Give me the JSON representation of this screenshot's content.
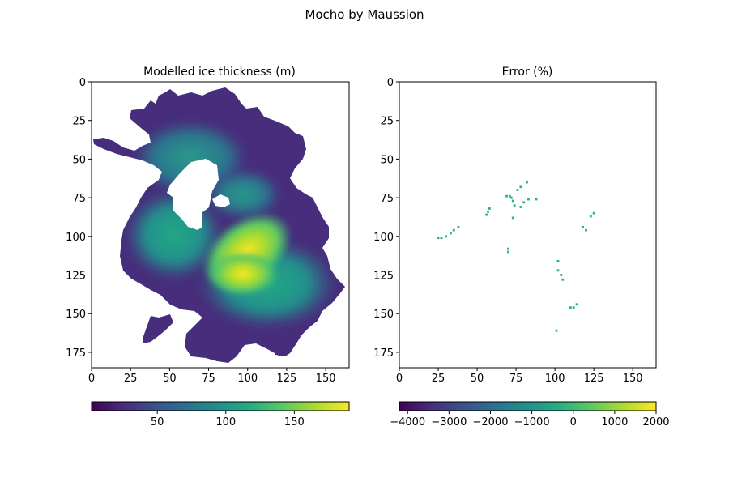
{
  "figure": {
    "suptitle": "Mocho by Maussion"
  },
  "chart_data": [
    {
      "type": "heatmap",
      "title": "Modelled ice thickness (m)",
      "xlabel": "",
      "ylabel": "",
      "xlim": [
        0,
        165
      ],
      "ylim": [
        185,
        0
      ],
      "x_ticks": [
        0,
        25,
        50,
        75,
        100,
        125,
        150
      ],
      "y_ticks": [
        0,
        25,
        50,
        75,
        100,
        125,
        150,
        175
      ],
      "colormap": "viridis",
      "colorbar": {
        "orientation": "horizontal",
        "range": [
          2,
          190
        ],
        "ticks": [
          50,
          100,
          150
        ]
      },
      "description_values": {
        "max_thickness_approx": 190,
        "max_location_approx": [
          105,
          125
        ]
      }
    },
    {
      "type": "heatmap",
      "title": "Error (%)",
      "xlabel": "",
      "ylabel": "",
      "xlim": [
        0,
        165
      ],
      "ylim": [
        185,
        0
      ],
      "x_ticks": [
        0,
        25,
        50,
        75,
        100,
        125,
        150
      ],
      "y_ticks": [
        0,
        25,
        50,
        75,
        100,
        125,
        150,
        175
      ],
      "colormap": "viridis",
      "colorbar": {
        "orientation": "horizontal",
        "range": [
          -4200,
          2000
        ],
        "ticks": [
          -4000,
          -3000,
          -2000,
          -1000,
          0,
          1000,
          2000
        ],
        "tick_labels": [
          "−4000",
          "−3000",
          "−2000",
          "−1000",
          "0",
          "1000",
          "2000"
        ]
      },
      "points": [
        [
          25,
          101
        ],
        [
          27,
          101
        ],
        [
          30,
          100
        ],
        [
          33,
          98
        ],
        [
          35,
          96
        ],
        [
          38,
          94
        ],
        [
          56,
          86
        ],
        [
          57,
          84
        ],
        [
          58,
          82
        ],
        [
          69,
          74
        ],
        [
          71,
          74
        ],
        [
          72,
          75
        ],
        [
          73,
          77
        ],
        [
          74,
          80
        ],
        [
          73,
          88
        ],
        [
          76,
          70
        ],
        [
          78,
          68
        ],
        [
          82,
          65
        ],
        [
          78,
          81
        ],
        [
          80,
          78
        ],
        [
          83,
          76
        ],
        [
          88,
          76
        ],
        [
          70,
          108
        ],
        [
          70,
          110
        ],
        [
          102,
          116
        ],
        [
          102,
          122
        ],
        [
          104,
          125
        ],
        [
          105,
          128
        ],
        [
          110,
          146
        ],
        [
          112,
          146
        ],
        [
          114,
          144
        ],
        [
          118,
          94
        ],
        [
          120,
          96
        ],
        [
          123,
          87
        ],
        [
          125,
          85
        ],
        [
          101,
          161
        ]
      ]
    }
  ]
}
